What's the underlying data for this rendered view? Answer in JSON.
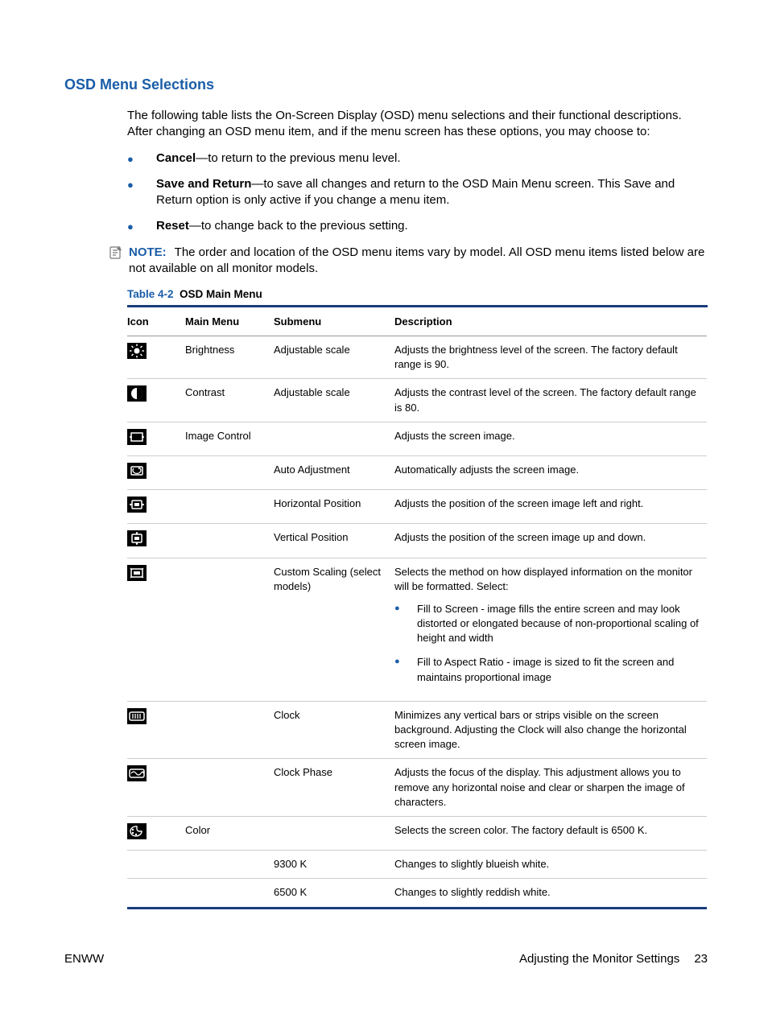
{
  "heading": "OSD Menu Selections",
  "intro": "The following table lists the On-Screen Display (OSD) menu selections and their functional descriptions. After changing an OSD menu item, and if the menu screen has these options, you may choose to:",
  "options": [
    {
      "label": "Cancel",
      "text": "—to return to the previous menu level."
    },
    {
      "label": "Save and Return",
      "text": "—to save all changes and return to the OSD Main Menu screen. This Save and Return option is only active if you change a menu item."
    },
    {
      "label": "Reset",
      "text": "—to change back to the previous setting."
    }
  ],
  "note": {
    "label": "NOTE:",
    "text": "The order and location of the OSD menu items vary by model. All OSD menu items listed below are not available on all monitor models."
  },
  "tableCaption": {
    "label": "Table 4-2",
    "title": "OSD Main Menu"
  },
  "columns": {
    "icon": "Icon",
    "main": "Main Menu",
    "sub": "Submenu",
    "desc": "Description"
  },
  "rows": [
    {
      "icon": "brightness",
      "main": "Brightness",
      "sub": "Adjustable scale",
      "desc": "Adjusts the brightness level of the screen. The factory default range is 90."
    },
    {
      "icon": "contrast",
      "main": "Contrast",
      "sub": "Adjustable scale",
      "desc": "Adjusts the contrast level of the screen. The factory default range is 80."
    },
    {
      "icon": "image-control",
      "main": "Image Control",
      "sub": "",
      "desc": "Adjusts the screen image."
    },
    {
      "icon": "auto-adjust",
      "main": "",
      "sub": "Auto Adjustment",
      "desc": "Automatically adjusts the screen image."
    },
    {
      "icon": "h-position",
      "main": "",
      "sub": "Horizontal Position",
      "desc": "Adjusts the position of the screen image left and right."
    },
    {
      "icon": "v-position",
      "main": "",
      "sub": "Vertical Position",
      "desc": "Adjusts the position of the screen image up and down."
    },
    {
      "icon": "custom-scaling",
      "main": "",
      "sub": "Custom Scaling (select models)",
      "desc": "Selects the method on how displayed information on the monitor will be formatted. Select:",
      "sublist": [
        "Fill to Screen - image fills the entire screen and may look distorted or elongated because of non-proportional scaling of height and width",
        "Fill to Aspect Ratio - image is sized to fit the screen and maintains proportional image"
      ]
    },
    {
      "icon": "clock",
      "main": "",
      "sub": "Clock",
      "desc": "Minimizes any vertical bars or strips visible on the screen background. Adjusting the Clock will also change the horizontal screen image."
    },
    {
      "icon": "clock-phase",
      "main": "",
      "sub": "Clock Phase",
      "desc": "Adjusts the focus of the display. This adjustment allows you to remove any horizontal noise and clear or sharpen the image of characters."
    },
    {
      "icon": "color",
      "main": "Color",
      "sub": "",
      "desc": "Selects the screen color. The factory default is 6500 K."
    },
    {
      "icon": "",
      "main": "",
      "sub": "9300 K",
      "desc": "Changes to slightly blueish white."
    },
    {
      "icon": "",
      "main": "",
      "sub": "6500 K",
      "desc": "Changes to slightly reddish white."
    }
  ],
  "footer": {
    "left": "ENWW",
    "right": "Adjusting the Monitor Settings",
    "page": "23"
  },
  "colors": {
    "accent": "#1a5da8",
    "tableBorder": "#1a3c7a"
  }
}
